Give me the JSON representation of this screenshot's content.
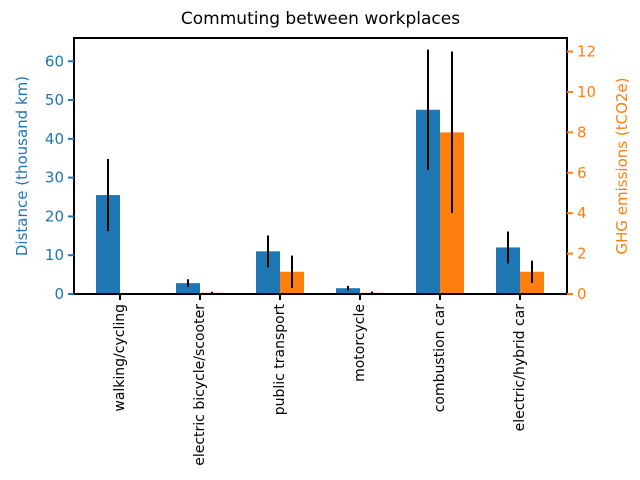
{
  "chart_data": {
    "type": "bar",
    "title": "Commuting between workplaces",
    "categories": [
      "walking/cycling",
      "electric bicycle/scooter",
      "public transport",
      "motorcycle",
      "combustion car",
      "electric/hybrid car"
    ],
    "series": [
      {
        "name": "Distance",
        "axis": "left",
        "color": "#1f77b4",
        "values": [
          25.5,
          2.8,
          11.0,
          1.5,
          47.5,
          12.0
        ],
        "errors": [
          9.3,
          1.0,
          4.1,
          0.6,
          15.5,
          4.1
        ]
      },
      {
        "name": "GHG emissions",
        "axis": "right",
        "color": "#ff7f0e",
        "values": [
          0,
          0.06,
          1.1,
          0.06,
          8.0,
          1.1
        ],
        "errors": [
          0,
          0.05,
          0.8,
          0.06,
          4.0,
          0.55
        ]
      }
    ],
    "left_axis": {
      "label": "Distance (thousand km)",
      "color": "#1f77b4",
      "ticks": [
        0,
        10,
        20,
        30,
        40,
        50,
        60
      ],
      "range": [
        0,
        66
      ]
    },
    "right_axis": {
      "label": "GHG emissions (tCO2e)",
      "color": "#ff7f0e",
      "ticks": [
        0,
        2,
        4,
        6,
        8,
        10,
        12
      ],
      "range": [
        0,
        12.67
      ]
    },
    "x_tick_color": "#000000",
    "error_bar_color": "#000000",
    "frame_color": "#000000",
    "grid": false,
    "legend": null
  }
}
